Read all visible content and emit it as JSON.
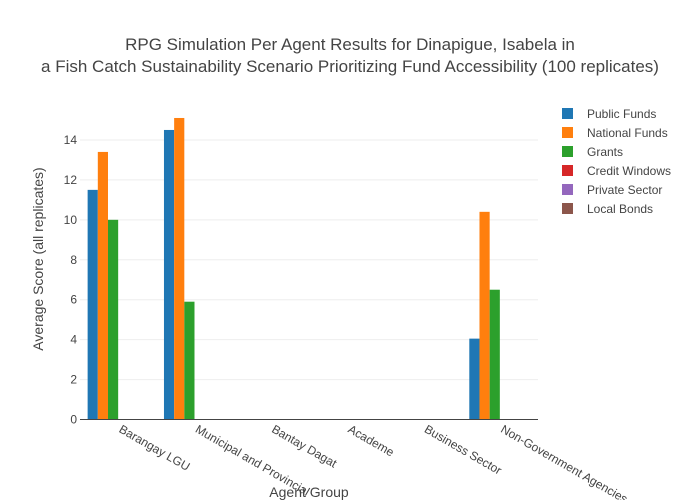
{
  "chart_data": {
    "type": "bar",
    "title_lines": [
      "RPG Simulation Per Agent Results for Dinapigue, Isabela in",
      "a Fish Catch Sustainability Scenario Prioritizing Fund Accessibility (100 replicates)"
    ],
    "xlabel": "Agent Group",
    "ylabel": "Average Score (all replicates)",
    "ylim": [
      0,
      15.6
    ],
    "yticks": [
      0,
      2,
      4,
      6,
      8,
      10,
      12,
      14
    ],
    "grid": true,
    "legend_position": "right",
    "categories": [
      "Barangay LGU",
      "Municipal and Provincial",
      "Bantay Dagat",
      "Academe",
      "Business Sector",
      "Non-Government Agencies"
    ],
    "series": [
      {
        "name": "Public Funds",
        "color": "#1f77b4",
        "values": [
          11.5,
          14.5,
          0,
          0,
          0,
          4.05
        ]
      },
      {
        "name": "National Funds",
        "color": "#ff7f0e",
        "values": [
          13.4,
          15.1,
          0,
          0,
          0,
          10.4
        ]
      },
      {
        "name": "Grants",
        "color": "#2ca02c",
        "values": [
          10.0,
          5.9,
          0,
          0,
          0,
          6.5
        ]
      },
      {
        "name": "Credit Windows",
        "color": "#d62728",
        "values": [
          0,
          0,
          0,
          0,
          0,
          0
        ]
      },
      {
        "name": "Private Sector",
        "color": "#9467bd",
        "values": [
          0,
          0,
          0,
          0,
          0,
          0
        ]
      },
      {
        "name": "Local Bonds",
        "color": "#8c564b",
        "values": [
          0,
          0,
          0,
          0,
          0,
          0
        ]
      }
    ]
  }
}
